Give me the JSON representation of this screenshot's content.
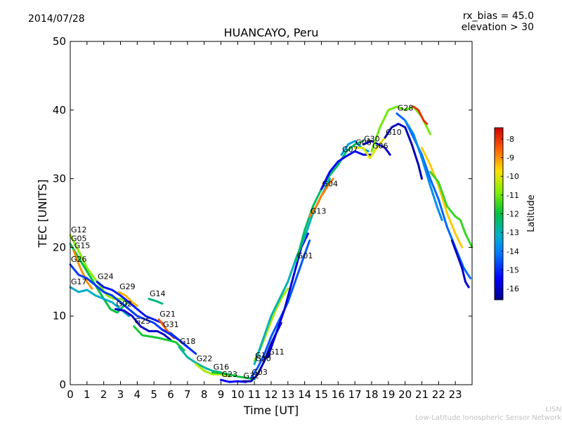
{
  "header": {
    "date": "2014/07/28",
    "bias": "rx_bias = 45.0",
    "elevation": "elevation > 30"
  },
  "footer": {
    "org_short": "LISN",
    "org_full": "Low-Latitude Ionospheric Sensor Network"
  },
  "chart_data": {
    "type": "scatter",
    "title": "HUANCAYO, Peru",
    "xlabel": "Time [UT]",
    "ylabel": "TEC [UNITS]",
    "xlim": [
      0,
      24
    ],
    "ylim": [
      0,
      50
    ],
    "x_ticks": [
      0,
      1,
      2,
      3,
      4,
      5,
      6,
      7,
      8,
      9,
      10,
      11,
      12,
      13,
      14,
      15,
      16,
      17,
      18,
      19,
      20,
      21,
      22,
      23
    ],
    "y_ticks": [
      0,
      10,
      20,
      30,
      40,
      50
    ],
    "colorbar": {
      "label": "Latitude",
      "range": [
        -16.6,
        -7.4
      ],
      "ticks": [
        -8,
        -9,
        -10,
        -11,
        -12,
        -13,
        -14,
        -15,
        -16
      ]
    },
    "series": [
      {
        "name": "G12",
        "lat": -10.8,
        "points": [
          [
            0.0,
            21.8
          ],
          [
            0.5,
            19.5
          ],
          [
            1.0,
            17.0
          ],
          [
            1.6,
            15.0
          ],
          [
            2.2,
            13.0
          ],
          [
            2.6,
            12.5
          ],
          [
            3.0,
            12.5
          ],
          [
            3.5,
            12.0
          ],
          [
            4.0,
            11.5
          ]
        ]
      },
      {
        "name": "G05",
        "lat": -12.0,
        "points": [
          [
            0.0,
            20.5
          ],
          [
            0.5,
            18.5
          ],
          [
            1.0,
            16.5
          ],
          [
            1.5,
            14.5
          ],
          [
            2.0,
            12.5
          ],
          [
            2.4,
            11.0
          ],
          [
            2.8,
            10.5
          ],
          [
            3.2,
            11.5
          ],
          [
            3.5,
            12.0
          ]
        ]
      },
      {
        "name": "G15",
        "lat": -9.0,
        "points": [
          [
            0.2,
            19.5
          ],
          [
            0.6,
            17.0
          ],
          [
            1.0,
            15.0
          ],
          [
            1.3,
            14.0
          ]
        ]
      },
      {
        "name": "G26",
        "lat": -14.8,
        "points": [
          [
            0.0,
            17.5
          ],
          [
            0.5,
            16.0
          ],
          [
            1.0,
            15.5
          ],
          [
            1.5,
            14.5
          ],
          [
            2.0,
            13.5
          ],
          [
            2.5,
            13.0
          ],
          [
            3.0,
            12.0
          ],
          [
            3.5,
            11.0
          ],
          [
            4.0,
            10.0
          ],
          [
            4.5,
            9.5
          ],
          [
            5.0,
            9.0
          ],
          [
            5.5,
            8.0
          ],
          [
            6.0,
            7.5
          ],
          [
            6.5,
            6.5
          ],
          [
            7.0,
            5.5
          ]
        ]
      },
      {
        "name": "G17",
        "lat": -13.2,
        "points": [
          [
            0.0,
            14.2
          ],
          [
            0.5,
            13.5
          ],
          [
            1.0,
            13.8
          ],
          [
            1.5,
            13.0
          ],
          [
            2.0,
            12.5
          ],
          [
            2.5,
            12.0
          ],
          [
            3.0,
            11.0
          ],
          [
            3.5,
            10.0
          ]
        ]
      },
      {
        "name": "G24",
        "lat": -15.2,
        "points": [
          [
            1.6,
            15.0
          ],
          [
            2.0,
            14.2
          ],
          [
            2.5,
            13.8
          ],
          [
            3.0,
            13.0
          ],
          [
            3.5,
            12.0
          ],
          [
            4.0,
            11.0
          ],
          [
            4.5,
            10.0
          ],
          [
            5.0,
            9.5
          ],
          [
            5.5,
            9.0
          ]
        ]
      },
      {
        "name": "G29",
        "lat": -9.3,
        "points": [
          [
            2.9,
            13.5
          ],
          [
            3.3,
            13.0
          ],
          [
            3.7,
            12.0
          ],
          [
            4.0,
            11.5
          ]
        ]
      },
      {
        "name": "G02",
        "lat": -16.0,
        "points": [
          [
            2.7,
            11.0
          ],
          [
            3.2,
            10.8
          ],
          [
            3.7,
            10.0
          ],
          [
            4.2,
            8.5
          ],
          [
            4.7,
            7.8
          ],
          [
            5.2,
            7.8
          ],
          [
            5.6,
            7.3
          ],
          [
            6.0,
            6.5
          ]
        ]
      },
      {
        "name": "G14",
        "lat": -12.5,
        "points": [
          [
            4.7,
            12.5
          ],
          [
            5.1,
            12.2
          ],
          [
            5.5,
            11.8
          ]
        ]
      },
      {
        "name": "G25",
        "lat": -11.8,
        "points": [
          [
            3.8,
            8.5
          ],
          [
            4.3,
            7.2
          ],
          [
            4.8,
            7.0
          ],
          [
            5.3,
            6.8
          ],
          [
            5.8,
            6.5
          ],
          [
            6.3,
            6.2
          ],
          [
            6.8,
            5.0
          ]
        ]
      },
      {
        "name": "G21",
        "lat": -8.5,
        "points": [
          [
            5.3,
            9.5
          ],
          [
            5.6,
            8.5
          ],
          [
            5.9,
            7.5
          ],
          [
            6.2,
            6.8
          ]
        ]
      },
      {
        "name": "G31",
        "lat": -15.0,
        "points": [
          [
            5.5,
            8.0
          ],
          [
            6.0,
            7.3
          ],
          [
            6.5,
            6.5
          ],
          [
            7.0,
            5.5
          ],
          [
            7.5,
            4.5
          ]
        ]
      },
      {
        "name": "G18",
        "lat": -12.8,
        "points": [
          [
            6.5,
            5.5
          ],
          [
            7.0,
            4.0
          ],
          [
            7.5,
            3.2
          ],
          [
            8.0,
            2.5
          ],
          [
            8.5,
            2.0
          ],
          [
            9.0,
            1.8
          ]
        ]
      },
      {
        "name": "G22",
        "lat": -10.5,
        "points": [
          [
            7.5,
            3.0
          ],
          [
            8.0,
            2.0
          ],
          [
            8.5,
            1.5
          ],
          [
            9.0,
            1.5
          ],
          [
            9.5,
            1.2
          ]
        ]
      },
      {
        "name": "G16",
        "lat": -12.0,
        "points": [
          [
            8.5,
            1.8
          ],
          [
            9.0,
            1.7
          ],
          [
            9.5,
            1.5
          ],
          [
            10.0,
            1.2
          ],
          [
            10.5,
            1.0
          ],
          [
            11.0,
            0.8
          ]
        ]
      },
      {
        "name": "G23",
        "lat": -15.5,
        "points": [
          [
            9.0,
            0.7
          ],
          [
            9.5,
            0.4
          ],
          [
            10.0,
            0.5
          ],
          [
            10.5,
            0.4
          ]
        ]
      },
      {
        "name": "G32",
        "lat": -16.2,
        "points": [
          [
            10.3,
            0.5
          ],
          [
            10.8,
            0.5
          ],
          [
            11.2,
            1.5
          ],
          [
            11.6,
            3.5
          ],
          [
            12.0,
            6.0
          ],
          [
            12.4,
            8.0
          ],
          [
            12.6,
            9.0
          ]
        ]
      },
      {
        "name": "G03",
        "lat": -14.5,
        "points": [
          [
            10.8,
            1.0
          ],
          [
            11.2,
            2.5
          ],
          [
            11.6,
            4.5
          ],
          [
            12.0,
            7.0
          ],
          [
            12.5,
            9.5
          ],
          [
            13.0,
            12.0
          ],
          [
            13.5,
            15.5
          ],
          [
            14.0,
            19.0
          ],
          [
            14.3,
            21.0
          ]
        ]
      },
      {
        "name": "G19",
        "lat": -10.5,
        "points": [
          [
            11.0,
            3.5
          ],
          [
            11.4,
            5.5
          ],
          [
            11.8,
            8.0
          ],
          [
            12.2,
            10.5
          ],
          [
            12.6,
            12.5
          ],
          [
            13.0,
            14.0
          ]
        ]
      },
      {
        "name": "G11",
        "lat": -15.8,
        "points": [
          [
            11.8,
            4.0
          ],
          [
            12.3,
            7.5
          ],
          [
            12.8,
            11.0
          ],
          [
            13.3,
            15.5
          ],
          [
            13.8,
            20.0
          ],
          [
            14.2,
            22.0
          ]
        ]
      },
      {
        "name": "G20",
        "lat": -13.0,
        "points": [
          [
            11.0,
            3.0
          ],
          [
            11.5,
            6.5
          ],
          [
            12.0,
            10.0
          ],
          [
            12.5,
            12.5
          ],
          [
            13.0,
            15.0
          ],
          [
            13.5,
            18.5
          ],
          [
            14.0,
            21.5
          ],
          [
            14.5,
            25.0
          ],
          [
            15.0,
            27.5
          ],
          [
            15.5,
            30.0
          ]
        ]
      },
      {
        "name": "G01",
        "lat": -12.3,
        "points": [
          [
            13.5,
            18.0
          ],
          [
            14.0,
            22.5
          ],
          [
            14.5,
            26.0
          ],
          [
            15.0,
            28.5
          ],
          [
            15.5,
            30.5
          ],
          [
            16.0,
            32.0
          ],
          [
            16.5,
            34.0
          ],
          [
            17.0,
            35.0
          ],
          [
            17.5,
            35.5
          ]
        ]
      },
      {
        "name": "G13",
        "lat": -8.8,
        "points": [
          [
            14.3,
            24.5
          ],
          [
            14.7,
            26.0
          ],
          [
            15.0,
            27.5
          ],
          [
            15.4,
            29.0
          ],
          [
            15.7,
            30.0
          ]
        ]
      },
      {
        "name": "G04",
        "lat": -15.5,
        "points": [
          [
            15.0,
            28.5
          ],
          [
            15.5,
            31.0
          ],
          [
            16.0,
            32.5
          ],
          [
            16.5,
            33.3
          ],
          [
            17.0,
            34.0
          ],
          [
            17.5,
            33.5
          ],
          [
            18.0,
            33.5
          ]
        ]
      },
      {
        "name": "G07",
        "lat": -13.5,
        "points": [
          [
            16.2,
            33.5
          ],
          [
            16.6,
            35.0
          ],
          [
            17.0,
            35.5
          ],
          [
            17.4,
            34.5
          ],
          [
            17.8,
            34.0
          ]
        ]
      },
      {
        "name": "G08",
        "lat": -10.0,
        "points": [
          [
            17.0,
            34.5
          ],
          [
            17.5,
            34.5
          ],
          [
            17.9,
            33.0
          ],
          [
            18.3,
            34.5
          ],
          [
            18.8,
            36.0
          ]
        ]
      },
      {
        "name": "G30",
        "lat": -15.8,
        "points": [
          [
            17.5,
            35.0
          ],
          [
            18.0,
            35.5
          ],
          [
            18.4,
            35.0
          ],
          [
            18.8,
            34.5
          ],
          [
            19.1,
            33.5
          ]
        ]
      },
      {
        "name": "G10",
        "lat": -16.2,
        "points": [
          [
            18.8,
            36.0
          ],
          [
            19.2,
            37.5
          ],
          [
            19.6,
            38.0
          ],
          [
            20.0,
            37.5
          ],
          [
            20.4,
            35.0
          ],
          [
            20.8,
            32.0
          ],
          [
            21.0,
            30.0
          ]
        ]
      },
      {
        "name": "G06",
        "lat": -11.0,
        "points": [
          [
            18.0,
            34.0
          ],
          [
            18.5,
            37.5
          ],
          [
            19.0,
            40.0
          ],
          [
            19.5,
            40.5
          ],
          [
            20.0,
            40.0
          ],
          [
            20.5,
            40.5
          ],
          [
            21.0,
            39.0
          ],
          [
            21.5,
            36.5
          ]
        ]
      },
      {
        "name": "G28",
        "lat": -14.3,
        "points": [
          [
            19.5,
            39.5
          ],
          [
            20.0,
            38.5
          ],
          [
            20.5,
            36.0
          ],
          [
            21.0,
            33.5
          ],
          [
            21.5,
            30.0
          ],
          [
            22.0,
            27.0
          ],
          [
            22.5,
            23.0
          ],
          [
            23.0,
            20.0
          ],
          [
            23.5,
            17.0
          ],
          [
            23.9,
            15.5
          ]
        ]
      },
      {
        "name": "",
        "lat": -8.0,
        "points": [
          [
            20.5,
            40.5
          ],
          [
            20.8,
            40.0
          ],
          [
            21.1,
            38.5
          ],
          [
            21.3,
            38.0
          ]
        ]
      },
      {
        "name": "",
        "lat": -9.5,
        "points": [
          [
            21.0,
            34.5
          ],
          [
            21.5,
            32.0
          ],
          [
            22.0,
            29.0
          ],
          [
            22.5,
            25.0
          ],
          [
            23.0,
            22.0
          ],
          [
            23.4,
            20.0
          ]
        ]
      },
      {
        "name": "",
        "lat": -11.5,
        "points": [
          [
            21.5,
            31.0
          ],
          [
            22.0,
            29.5
          ],
          [
            22.5,
            26.0
          ],
          [
            23.0,
            24.5
          ],
          [
            23.3,
            24.0
          ],
          [
            23.6,
            22.0
          ],
          [
            24.0,
            20.0
          ]
        ]
      },
      {
        "name": "",
        "lat": -16.0,
        "points": [
          [
            22.8,
            21.0
          ],
          [
            23.1,
            19.0
          ],
          [
            23.4,
            17.0
          ],
          [
            23.6,
            15.0
          ],
          [
            23.8,
            14.2
          ]
        ]
      },
      {
        "name": "",
        "lat": -13.8,
        "points": [
          [
            20.0,
            38.5
          ],
          [
            20.5,
            36.5
          ],
          [
            21.0,
            33.0
          ],
          [
            21.5,
            29.0
          ],
          [
            21.9,
            26.0
          ],
          [
            22.2,
            24.0
          ]
        ]
      }
    ]
  }
}
